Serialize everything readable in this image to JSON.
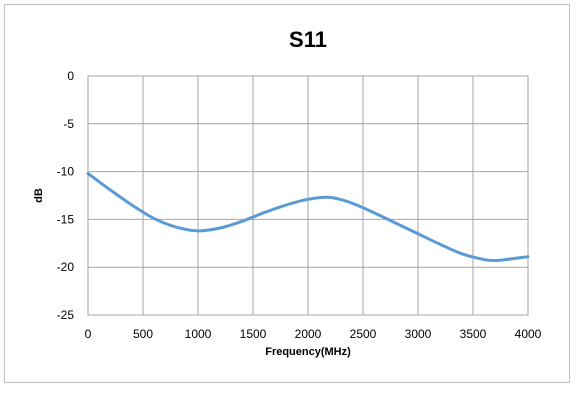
{
  "chart_data": {
    "type": "line",
    "title": "S11",
    "xlabel": "Frequency(MHz)",
    "ylabel": "dB",
    "xlim": [
      0,
      4000
    ],
    "ylim": [
      -25,
      0
    ],
    "xticks": [
      0,
      500,
      1000,
      1500,
      2000,
      2500,
      3000,
      3500,
      4000
    ],
    "yticks": [
      0,
      -5,
      -10,
      -15,
      -20,
      -25
    ],
    "xtick_labels": [
      "0",
      "500",
      "1000",
      "1500",
      "2000",
      "2500",
      "3000",
      "3500",
      "4000"
    ],
    "ytick_labels": [
      "0",
      "-5",
      "-10",
      "-15",
      "-20",
      "-25"
    ],
    "grid": true,
    "legend": "none",
    "series": [
      {
        "color": "#5b9bd5",
        "x": [
          0,
          200,
          400,
          600,
          800,
          1000,
          1200,
          1400,
          1600,
          1800,
          2000,
          2200,
          2400,
          2600,
          2800,
          3000,
          3200,
          3400,
          3600,
          3700,
          3800,
          4000
        ],
        "y": [
          -10.2,
          -11.9,
          -13.5,
          -14.9,
          -15.8,
          -16.2,
          -15.9,
          -15.2,
          -14.3,
          -13.5,
          -12.9,
          -12.7,
          -13.3,
          -14.3,
          -15.4,
          -16.5,
          -17.6,
          -18.6,
          -19.2,
          -19.3,
          -19.2,
          -18.9
        ]
      }
    ]
  }
}
